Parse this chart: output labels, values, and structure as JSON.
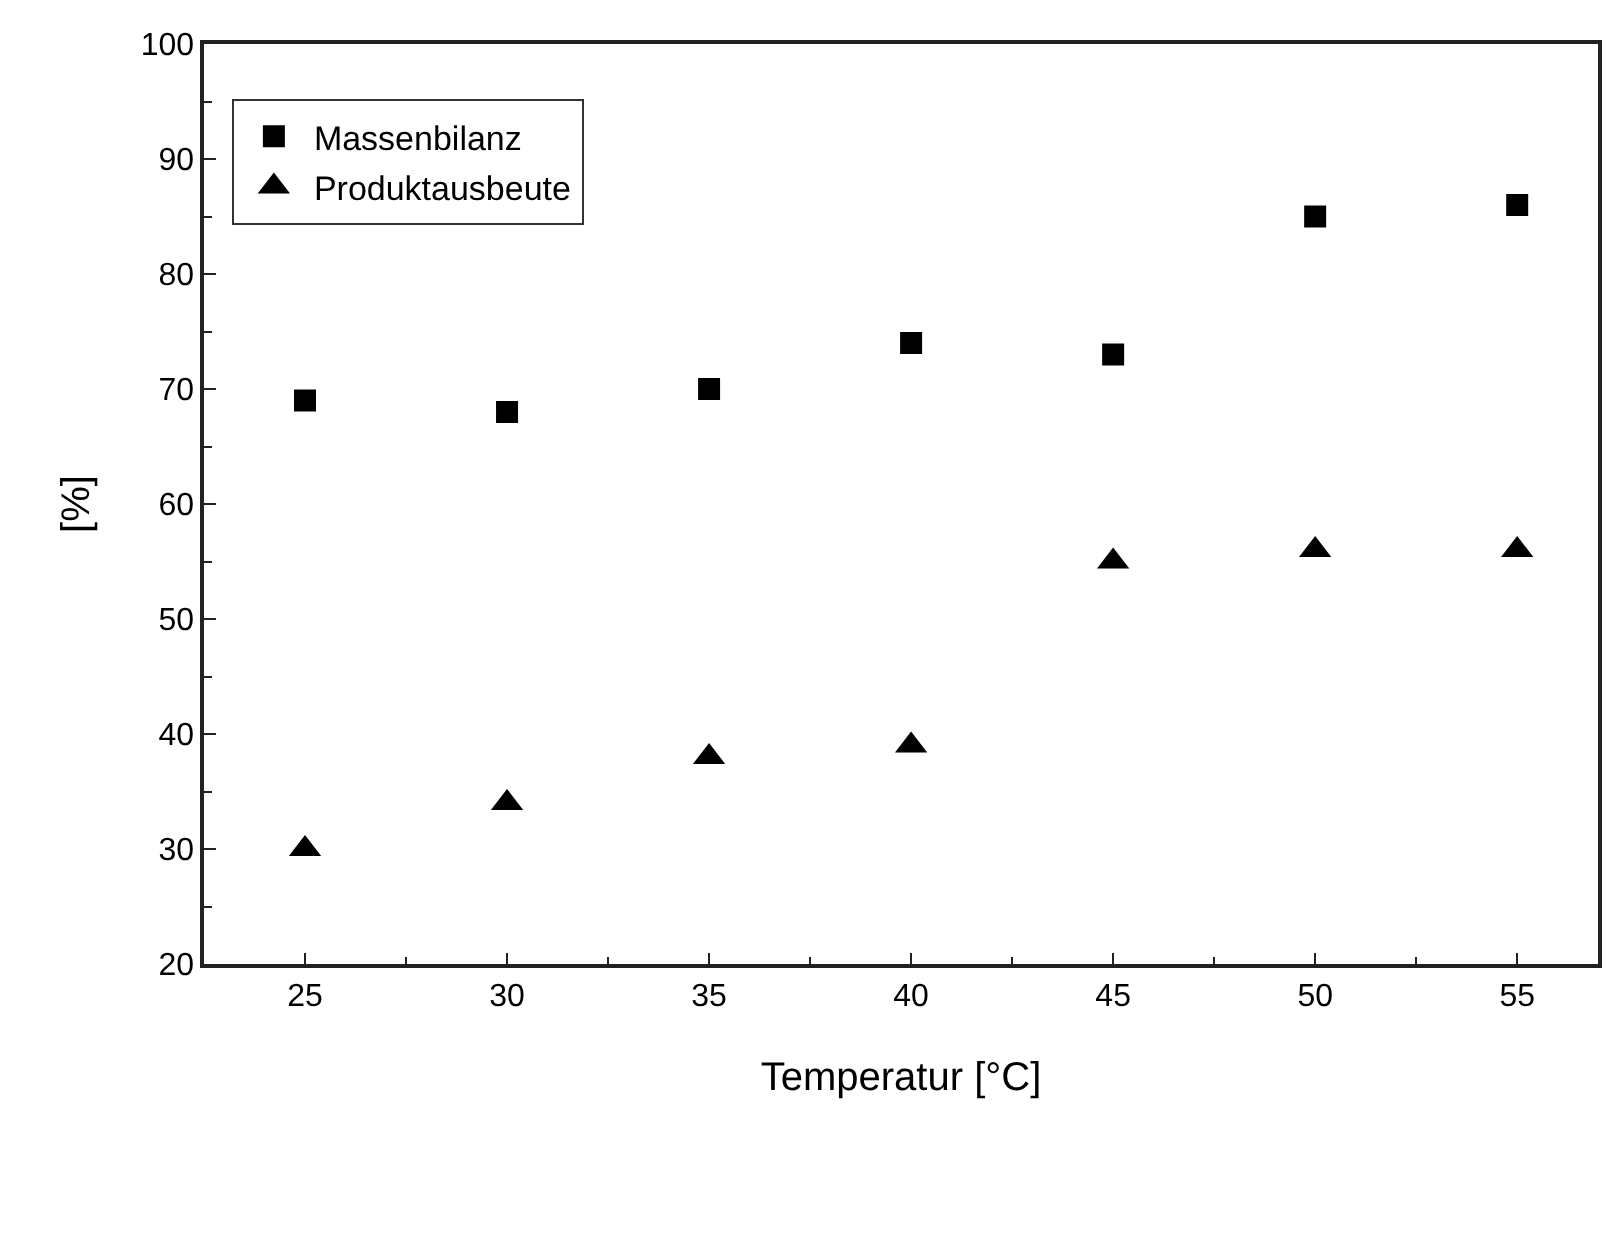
{
  "chart_data": {
    "type": "scatter",
    "xlabel": "Temperatur [°C]",
    "ylabel": "[%]",
    "x": [
      25,
      30,
      35,
      40,
      45,
      50,
      55
    ],
    "series": [
      {
        "name": "Massenbilanz",
        "color": "#000000",
        "marker": "square",
        "values": [
          69,
          68,
          70,
          74,
          73,
          85,
          86
        ]
      },
      {
        "name": "Produktausbeute",
        "color": "#000000",
        "marker": "triangle",
        "values": [
          30,
          34,
          38,
          39,
          55,
          56,
          56
        ]
      }
    ],
    "xlim": [
      22.5,
      57
    ],
    "xticks": [
      25,
      30,
      35,
      40,
      45,
      50,
      55
    ],
    "ylim": [
      20,
      100
    ],
    "yticks": [
      20,
      30,
      40,
      50,
      60,
      70,
      80,
      90,
      100
    ],
    "legend": "top left"
  }
}
